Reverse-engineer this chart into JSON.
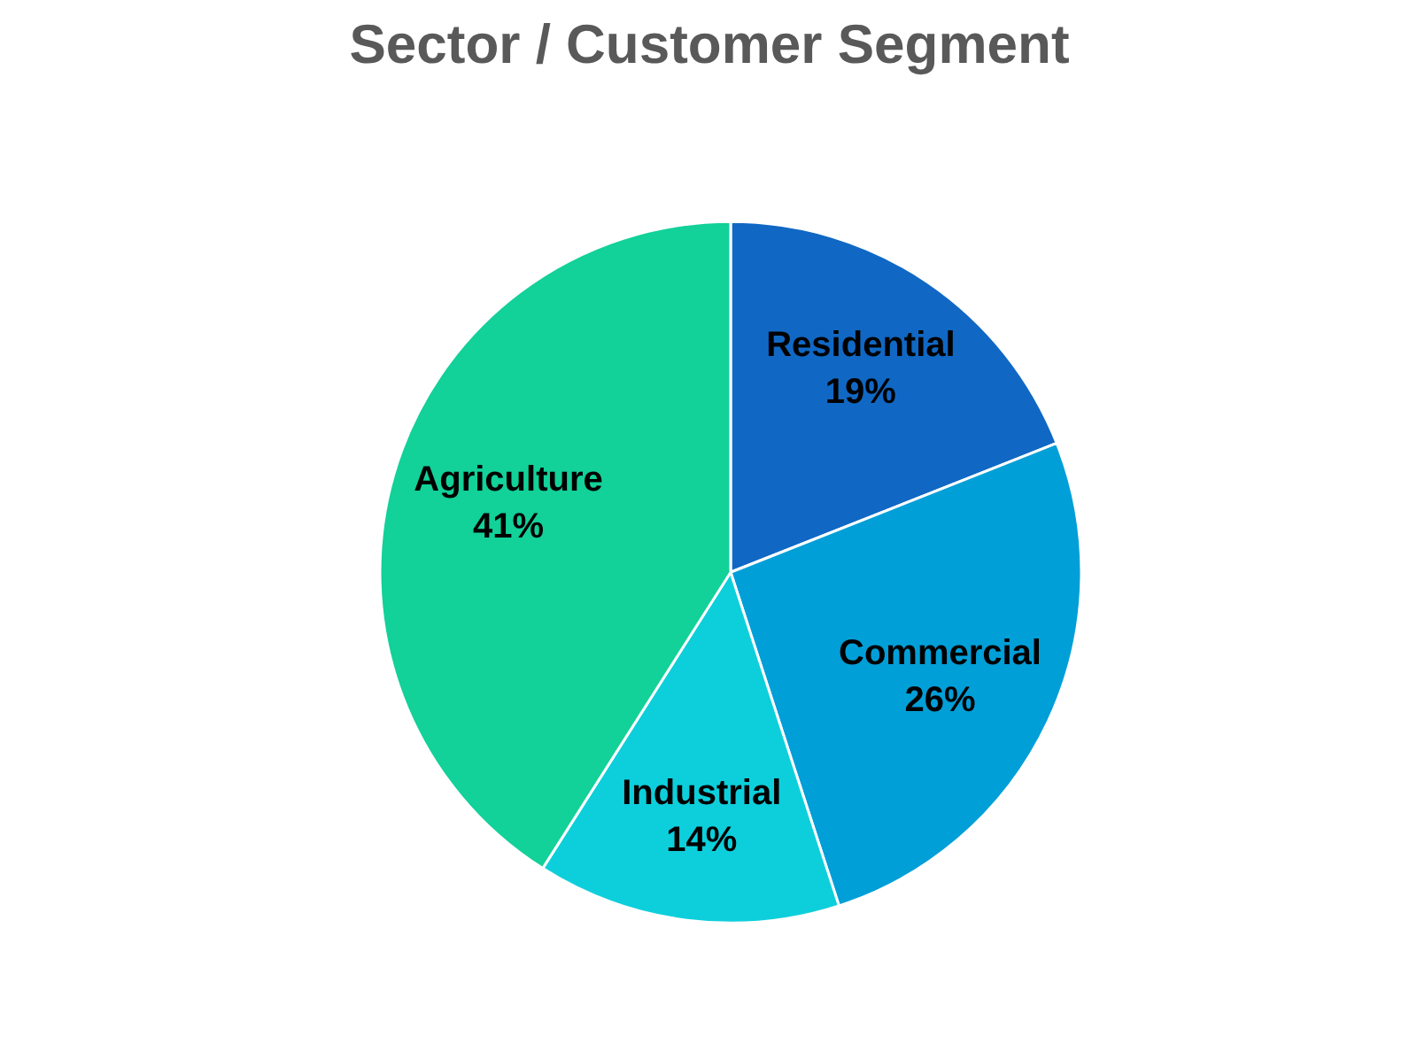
{
  "chart_data": {
    "type": "pie",
    "title": "Sector / Customer Segment",
    "categories": [
      "Residential",
      "Commercial",
      "Industrial",
      "Agriculture"
    ],
    "values": [
      19,
      26,
      14,
      41
    ],
    "value_labels": [
      "19%",
      "26%",
      "14%",
      "41%"
    ],
    "colors": [
      "#1068c4",
      "#019fd8",
      "#0dcfdb",
      "#12d199"
    ]
  }
}
